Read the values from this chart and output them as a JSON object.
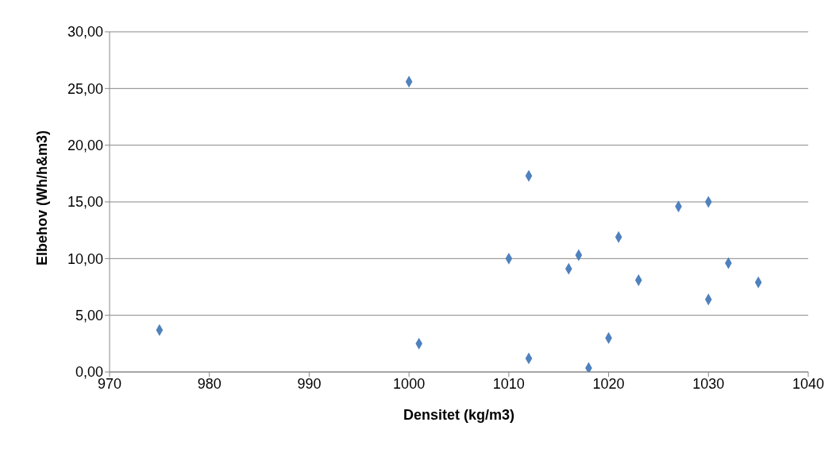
{
  "chart_data": {
    "type": "scatter",
    "xlabel": "Densitet (kg/m3)",
    "ylabel": "Elbehov (Wh/h&m3)",
    "x": [
      975,
      1000,
      1001,
      1010,
      1012,
      1012,
      1016,
      1017,
      1018,
      1020,
      1021,
      1023,
      1027,
      1030,
      1030,
      1032,
      1035
    ],
    "values": [
      3.7,
      25.6,
      2.5,
      10.0,
      17.3,
      1.2,
      9.1,
      10.3,
      0.35,
      3.0,
      11.9,
      8.1,
      14.6,
      15.0,
      6.4,
      9.6,
      7.9
    ],
    "color": "#4f81bd",
    "marker": "diamond",
    "grid": "y",
    "legend": false,
    "xlim": [
      970,
      1040
    ],
    "xticks": [
      970,
      980,
      990,
      1000,
      1010,
      1020,
      1030,
      1040
    ],
    "ylim": [
      0,
      30
    ],
    "yticks": [
      {
        "value": 0,
        "label": "0,00"
      },
      {
        "value": 5,
        "label": "5,00"
      },
      {
        "value": 10,
        "label": "10,00"
      },
      {
        "value": 15,
        "label": "15,00"
      },
      {
        "value": 20,
        "label": "20,00"
      },
      {
        "value": 25,
        "label": "25,00"
      },
      {
        "value": 30,
        "label": "30,00"
      }
    ]
  }
}
